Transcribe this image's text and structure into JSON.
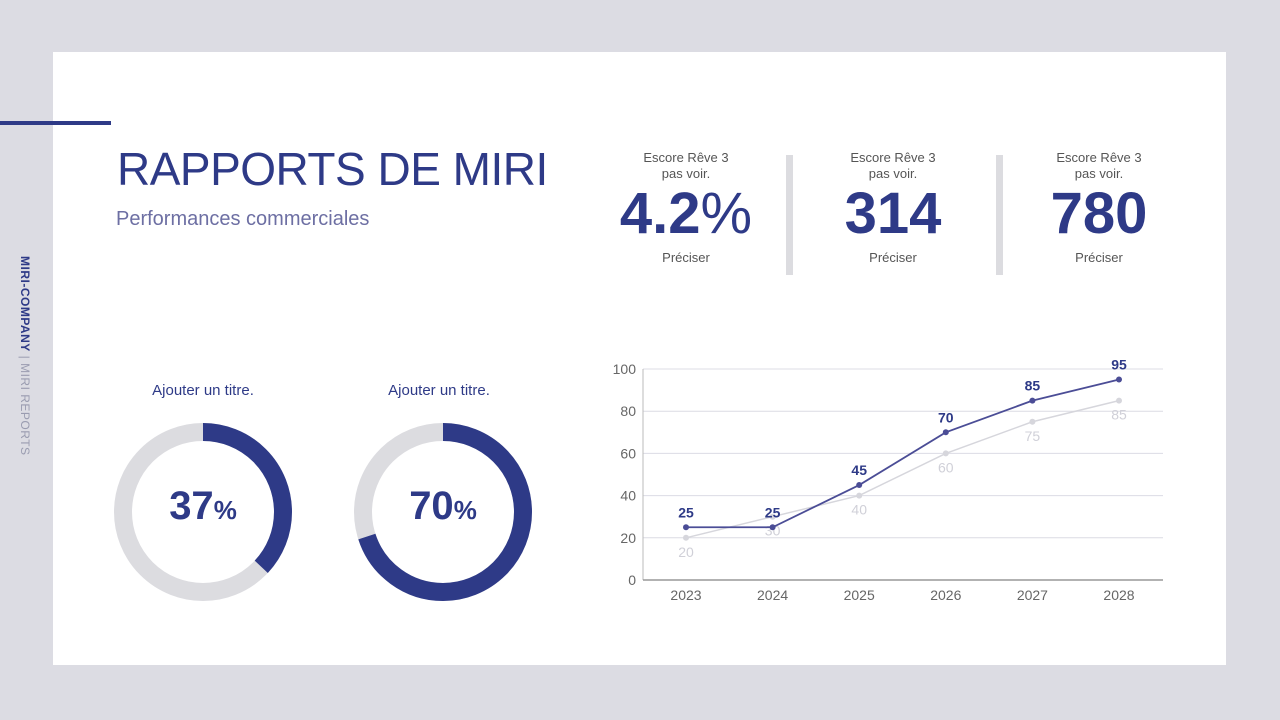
{
  "sidebar": {
    "brand": "MIRI-COMPANY",
    "separator": " | ",
    "suffix": "MIRI REPORTS"
  },
  "header": {
    "title": "RAPPORTS DE MIRI",
    "subtitle": "Performances commerciales"
  },
  "kpis": [
    {
      "caption1": "Escore Rêve 3",
      "caption2": "pas voir.",
      "value": "4.2",
      "unit": "%",
      "footer": "Préciser"
    },
    {
      "caption1": "Escore Rêve 3",
      "caption2": "pas voir.",
      "value": "314",
      "unit": "",
      "footer": "Préciser"
    },
    {
      "caption1": "Escore Rêve 3",
      "caption2": "pas voir.",
      "value": "780",
      "unit": "",
      "footer": "Préciser"
    }
  ],
  "colors": {
    "accent": "#2e3a87",
    "line_dark": "#4b4d96",
    "line_light": "#d6d6dc",
    "track": "#dcdce0"
  },
  "chart_data": [
    {
      "type": "pie",
      "subtype": "donut",
      "title": "Ajouter un titre.",
      "value": 37,
      "label": "37",
      "unit": "%"
    },
    {
      "type": "pie",
      "subtype": "donut",
      "title": "Ajouter un titre.",
      "value": 70,
      "label": "70",
      "unit": "%"
    },
    {
      "type": "line",
      "categories": [
        "2023",
        "2024",
        "2025",
        "2026",
        "2027",
        "2028"
      ],
      "series": [
        {
          "values": [
            25,
            25,
            45,
            70,
            85,
            95
          ],
          "color": "#4b4d96"
        },
        {
          "values": [
            20,
            30,
            40,
            60,
            75,
            85
          ],
          "color": "#d6d6dc"
        }
      ],
      "ylim": [
        0,
        100
      ],
      "yticks": [
        "0",
        "20",
        "40",
        "60",
        "80",
        "100"
      ],
      "grid": true,
      "data_labels": true
    }
  ]
}
